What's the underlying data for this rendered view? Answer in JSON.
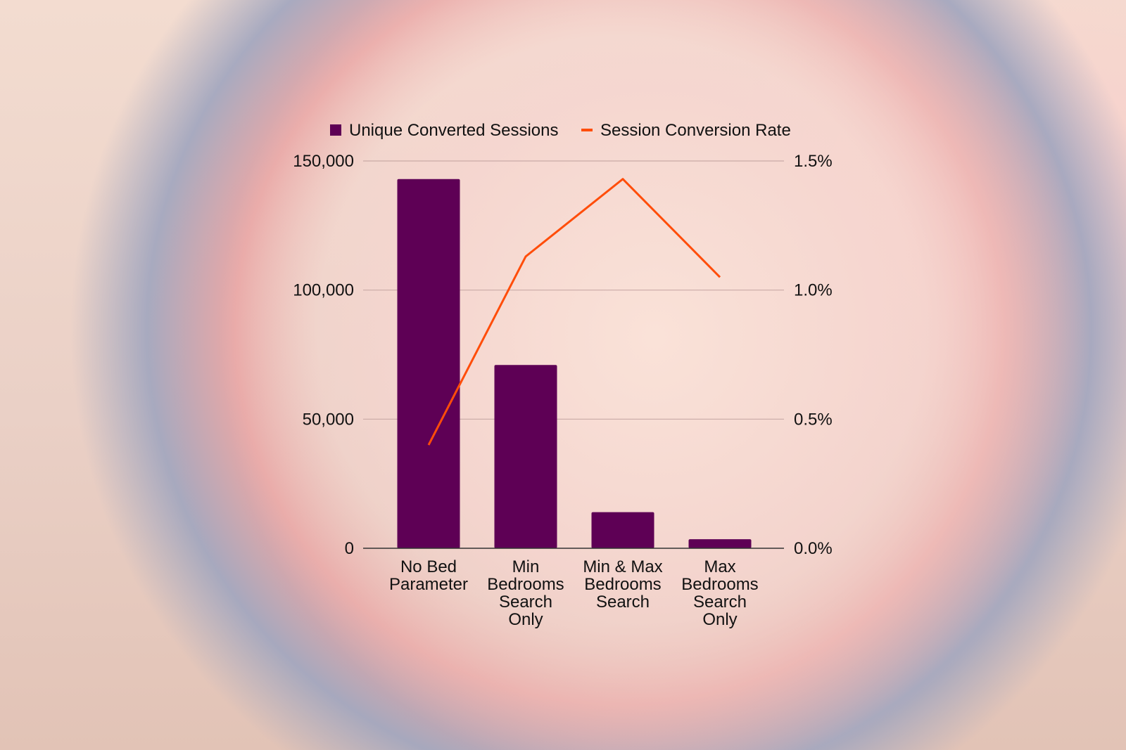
{
  "chart_data": {
    "type": "bar",
    "categories": [
      [
        "No Bed",
        "Parameter"
      ],
      [
        "Min",
        "Bedrooms",
        "Search",
        "Only"
      ],
      [
        "Min & Max",
        "Bedrooms",
        "Search"
      ],
      [
        "Max",
        "Bedrooms",
        "Search",
        "Only"
      ]
    ],
    "series": [
      {
        "name": "Unique Converted Sessions",
        "type": "bar",
        "axis": "left",
        "color": "#5e0055",
        "values": [
          143000,
          71000,
          14000,
          3500
        ]
      },
      {
        "name": "Session Conversion Rate",
        "type": "line",
        "axis": "right",
        "color": "#ff4d0a",
        "values": [
          0.4,
          1.13,
          1.43,
          1.05
        ]
      }
    ],
    "left_axis": {
      "ylim": [
        0,
        150000
      ],
      "ticks": [
        0,
        50000,
        100000,
        150000
      ],
      "tick_labels": [
        "0",
        "50,000",
        "100,000",
        "150,000"
      ]
    },
    "right_axis": {
      "ylim": [
        0,
        1.5
      ],
      "ticks": [
        0,
        0.5,
        1.0,
        1.5
      ],
      "tick_labels": [
        "0.0%",
        "0.5%",
        "1.0%",
        "1.5%"
      ]
    },
    "grid": true,
    "legend": "top",
    "title": "",
    "xlabel": "",
    "ylabel": ""
  }
}
